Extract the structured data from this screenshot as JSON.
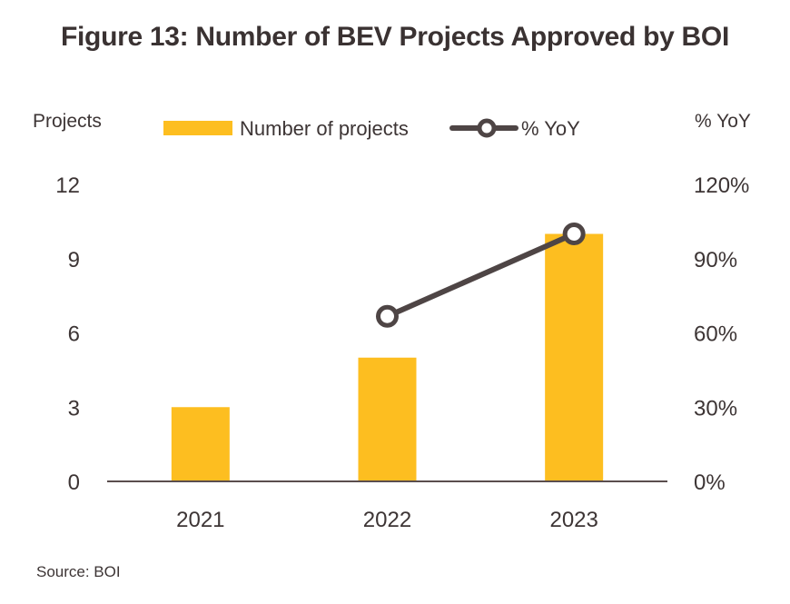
{
  "title": "Figure 13: Number of BEV Projects Approved by BOI",
  "source": "Source: BOI",
  "colors": {
    "bar": "#FDBE20",
    "line": "#4E4545",
    "text": "#3D3535",
    "axis": "#5A4E4E"
  },
  "chart_data": {
    "type": "bar",
    "title": "Figure 13: Number of BEV Projects Approved by BOI",
    "categories": [
      "2021",
      "2022",
      "2023"
    ],
    "ylabel": "Projects",
    "y2label": "% YoY",
    "ylim": [
      0,
      12
    ],
    "y2lim": [
      0,
      1.2
    ],
    "yticks": [
      "0",
      "3",
      "6",
      "9",
      "12"
    ],
    "y2ticks": [
      "0%",
      "30%",
      "60%",
      "90%",
      "120%"
    ],
    "legend_position": "top",
    "grid": false,
    "series": [
      {
        "name": "Number of projects",
        "type": "bar",
        "axis": "left",
        "values": [
          3,
          5,
          10
        ]
      },
      {
        "name": "% YoY",
        "type": "line",
        "axis": "right",
        "values": [
          null,
          0.667,
          1.0
        ]
      }
    ]
  }
}
